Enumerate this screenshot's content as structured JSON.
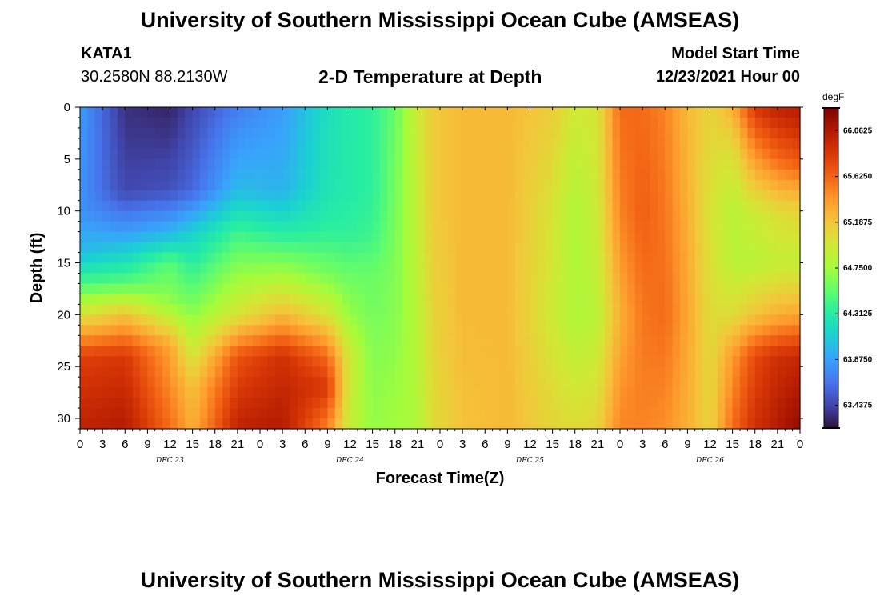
{
  "page": {
    "title": "University of Southern Mississippi Ocean Cube (AMSEAS)",
    "station": "KATA1",
    "coordinates": "30.2580N  88.2130W",
    "subtitle": "2-D Temperature at Depth",
    "model_start_label": "Model Start Time",
    "model_start_value": "12/23/2021 Hour 00",
    "footer_title": "University of Southern Mississippi Ocean Cube (AMSEAS)"
  },
  "chart_data": {
    "type": "heatmap",
    "title": "2-D Temperature at Depth",
    "xlabel": "Forecast Time(Z)",
    "ylabel": "Depth (ft)",
    "x_tick_labels": [
      "0",
      "3",
      "6",
      "9",
      "12",
      "15",
      "18",
      "21",
      "0",
      "3",
      "6",
      "9",
      "12",
      "15",
      "18",
      "21",
      "0",
      "3",
      "6",
      "9",
      "12",
      "15",
      "18",
      "21",
      "0",
      "3",
      "6",
      "9",
      "12",
      "15",
      "18",
      "21",
      "0"
    ],
    "day_labels": [
      "DEC 23",
      "DEC 24",
      "DEC 25",
      "DEC 26"
    ],
    "y_tick_labels": [
      "0",
      "5",
      "10",
      "15",
      "20",
      "25",
      "30"
    ],
    "ylim": [
      0,
      31
    ],
    "y_inverted": true,
    "x_range_hours": [
      0,
      96
    ],
    "colorbar": {
      "unit": "degF",
      "tick_labels": [
        "66.0625",
        "65.6250",
        "65.1875",
        "64.7500",
        "64.3125",
        "63.8750",
        "63.4375"
      ],
      "range": [
        63.22,
        66.28
      ],
      "colormap": [
        "#30123b",
        "#4145ab",
        "#4675ed",
        "#39a2fc",
        "#1bcfd4",
        "#24eca6",
        "#61fc6c",
        "#a4fc3b",
        "#d1e834",
        "#f3c63a",
        "#fe9b2d",
        "#f36315",
        "#d93806",
        "#b11901",
        "#7a0403"
      ]
    },
    "depths_ft": [
      0,
      1,
      2,
      3,
      4,
      5,
      6,
      7,
      8,
      9,
      10,
      11,
      12,
      13,
      14,
      15,
      16,
      17,
      18,
      19,
      20,
      21,
      22,
      23,
      24,
      25,
      26,
      27,
      28,
      29,
      30,
      31
    ],
    "profile_hours": [
      0,
      3,
      6,
      9,
      12,
      15,
      18,
      21,
      24,
      27,
      30,
      33,
      36,
      39,
      42,
      45,
      48,
      51,
      54,
      57,
      60,
      63,
      66,
      69,
      72,
      75,
      78,
      81,
      84,
      87,
      90,
      93,
      96
    ],
    "profiles": [
      {
        "hour": 0,
        "depths": [
          0,
          10,
          14,
          17,
          20,
          24,
          31
        ],
        "temps": [
          63.85,
          63.8,
          64.0,
          64.45,
          65.0,
          65.8,
          66.0
        ]
      },
      {
        "hour": 6,
        "depths": [
          0,
          8,
          12,
          17,
          20,
          24,
          31
        ],
        "temps": [
          63.35,
          63.45,
          63.85,
          64.5,
          65.2,
          65.85,
          66.05
        ]
      },
      {
        "hour": 12,
        "depths": [
          0,
          8,
          12,
          15,
          19,
          23,
          31
        ],
        "temps": [
          63.3,
          63.5,
          63.95,
          64.5,
          64.7,
          65.35,
          65.6
        ]
      },
      {
        "hour": 15,
        "depths": [
          0,
          8,
          12,
          16,
          19,
          23,
          27,
          31
        ],
        "temps": [
          63.45,
          63.6,
          64.1,
          64.4,
          64.6,
          64.9,
          65.2,
          65.3
        ]
      },
      {
        "hour": 21,
        "depths": [
          0,
          8,
          12,
          16,
          20,
          24,
          31
        ],
        "temps": [
          63.7,
          64.0,
          64.4,
          64.7,
          65.0,
          65.7,
          66.0
        ]
      },
      {
        "hour": 27,
        "depths": [
          0,
          8,
          12,
          16,
          20,
          24,
          31
        ],
        "temps": [
          63.85,
          63.95,
          64.3,
          64.75,
          65.25,
          65.9,
          66.05
        ]
      },
      {
        "hour": 33,
        "depths": [
          0,
          8,
          12,
          16,
          20,
          24,
          27,
          31
        ],
        "temps": [
          64.2,
          64.25,
          64.35,
          64.6,
          65.0,
          65.6,
          65.85,
          65.5
        ]
      },
      {
        "hour": 36,
        "depths": [
          0,
          8,
          12,
          16,
          20,
          24,
          31
        ],
        "temps": [
          64.3,
          64.3,
          64.35,
          64.55,
          64.7,
          64.95,
          64.9
        ]
      },
      {
        "hour": 39,
        "depths": [
          0,
          8,
          12,
          16,
          20,
          24,
          31
        ],
        "temps": [
          64.35,
          64.35,
          64.4,
          64.55,
          64.6,
          64.65,
          64.7
        ]
      },
      {
        "hour": 42,
        "depths": [
          0,
          10,
          20,
          31
        ],
        "temps": [
          64.55,
          64.6,
          64.65,
          64.75
        ]
      },
      {
        "hour": 45,
        "depths": [
          0,
          10,
          20,
          31
        ],
        "temps": [
          64.95,
          64.9,
          64.85,
          64.8
        ]
      },
      {
        "hour": 47,
        "depths": [
          0,
          10,
          20,
          31
        ],
        "temps": [
          65.15,
          65.15,
          65.1,
          65.05
        ]
      },
      {
        "hour": 51,
        "depths": [
          0,
          10,
          20,
          31
        ],
        "temps": [
          65.25,
          65.25,
          65.25,
          65.2
        ]
      },
      {
        "hour": 57,
        "depths": [
          0,
          10,
          20,
          31
        ],
        "temps": [
          65.25,
          65.25,
          65.25,
          65.25
        ]
      },
      {
        "hour": 63,
        "depths": [
          0,
          10,
          20,
          31
        ],
        "temps": [
          65.15,
          65.0,
          64.95,
          65.1
        ]
      },
      {
        "hour": 66,
        "depths": [
          0,
          10,
          20,
          31
        ],
        "temps": [
          64.95,
          64.8,
          64.8,
          65.05
        ]
      },
      {
        "hour": 69,
        "depths": [
          0,
          10,
          20,
          31
        ],
        "temps": [
          65.0,
          64.95,
          64.85,
          65.1
        ]
      },
      {
        "hour": 72,
        "depths": [
          0,
          10,
          20,
          31
        ],
        "temps": [
          65.6,
          65.5,
          65.3,
          65.5
        ]
      },
      {
        "hour": 75,
        "depths": [
          0,
          10,
          20,
          31
        ],
        "temps": [
          65.6,
          65.65,
          65.55,
          65.5
        ]
      },
      {
        "hour": 78,
        "depths": [
          0,
          10,
          20,
          31
        ],
        "temps": [
          65.5,
          65.55,
          65.6,
          65.45
        ]
      },
      {
        "hour": 81,
        "depths": [
          0,
          10,
          20,
          31
        ],
        "temps": [
          65.25,
          65.3,
          65.35,
          65.3
        ]
      },
      {
        "hour": 84,
        "depths": [
          0,
          10,
          20,
          31
        ],
        "temps": [
          65.1,
          65.0,
          65.05,
          65.1
        ]
      },
      {
        "hour": 87,
        "depths": [
          0,
          5,
          10,
          15,
          20,
          24,
          31
        ],
        "temps": [
          65.3,
          65.0,
          64.85,
          64.85,
          65.05,
          65.4,
          65.6
        ]
      },
      {
        "hour": 90,
        "depths": [
          0,
          5,
          10,
          15,
          20,
          24,
          31
        ],
        "temps": [
          65.85,
          65.4,
          64.95,
          64.85,
          65.2,
          65.75,
          65.9
        ]
      },
      {
        "hour": 93,
        "depths": [
          0,
          5,
          10,
          15,
          20,
          24,
          31
        ],
        "temps": [
          66.0,
          65.6,
          65.05,
          64.9,
          65.3,
          65.9,
          66.05
        ]
      },
      {
        "hour": 96,
        "depths": [
          0,
          5,
          10,
          15,
          20,
          24,
          31
        ],
        "temps": [
          66.05,
          65.7,
          65.1,
          64.9,
          65.35,
          65.95,
          66.2
        ]
      }
    ]
  }
}
